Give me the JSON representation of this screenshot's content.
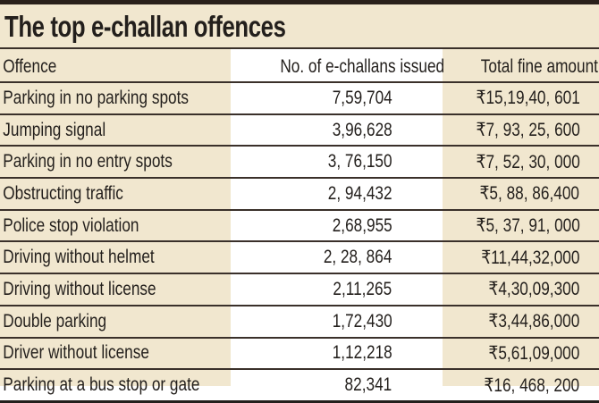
{
  "title": "The top e-challan offences",
  "headers": [
    "Offence",
    "No. of e-challans issued",
    "Total fine amount"
  ],
  "rows": [
    [
      "Parking in no parking spots",
      "7,59,704",
      "₹15,19,40, 601"
    ],
    [
      "Jumping signal",
      "3,96,628",
      "₹7, 93, 25, 600"
    ],
    [
      "Parking in no entry spots",
      "3, 76,150",
      "₹7, 52, 30, 000"
    ],
    [
      "Obstructing traffic",
      "2, 94,432",
      "₹5, 88, 86,400"
    ],
    [
      "Police stop violation",
      "2,68,955",
      "₹5, 37, 91, 000"
    ],
    [
      "Driving without helmet",
      "2, 28, 864",
      "₹11,44,32,000"
    ],
    [
      "Driving without license",
      "2,11,265",
      "₹4,30,09,300"
    ],
    [
      "Double parking",
      "1,72,430",
      "₹3,44,86,000"
    ],
    [
      "Driver without license",
      "1,12,218",
      "₹5,61,09,000"
    ],
    [
      "Parking at a bus stop or gate",
      "82,341",
      "₹16, 468, 200"
    ]
  ],
  "colors": {
    "accent_bg": "#f1e7cf",
    "rule": "#3a302a"
  }
}
